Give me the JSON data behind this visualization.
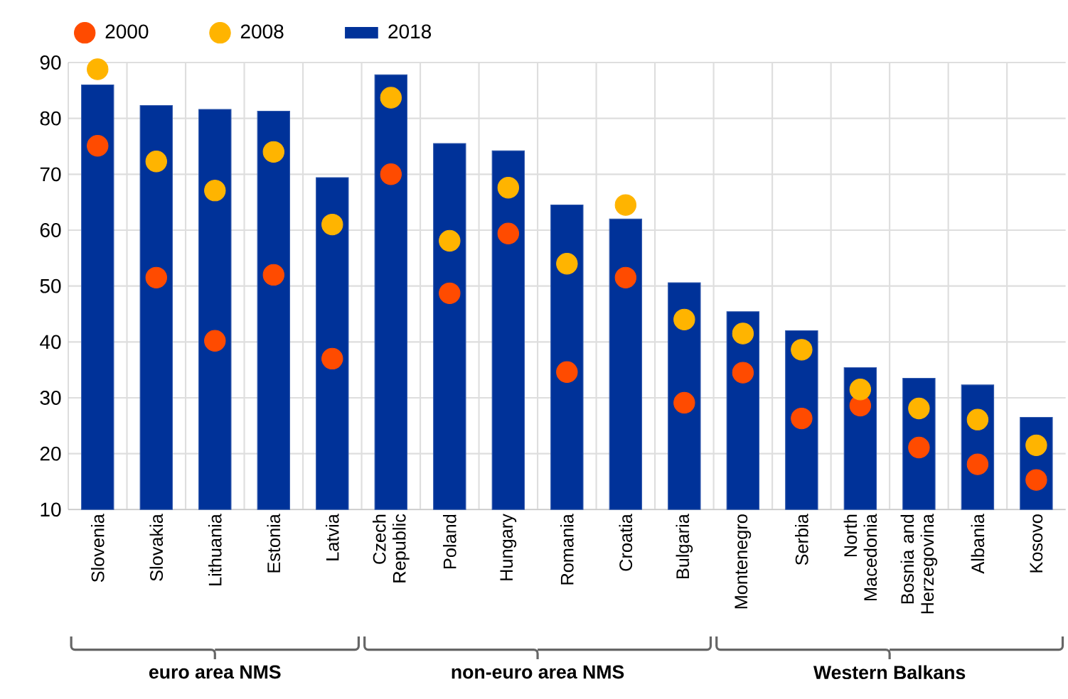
{
  "chart_data": {
    "type": "bar",
    "categories": [
      "Slovenia",
      "Slovakia",
      "Lithuania",
      "Estonia",
      "Latvia",
      "Czech Republic",
      "Poland",
      "Hungary",
      "Romania",
      "Croatia",
      "Bulgaria",
      "Montenegro",
      "Serbia",
      "North Macedonia",
      "Bosnia and Herzegovina",
      "Albania",
      "Kosovo"
    ],
    "series": [
      {
        "name": "2000",
        "type": "scatter",
        "color": "#ff4b00",
        "values": [
          75.1,
          51.5,
          40.2,
          52,
          37,
          70,
          48.7,
          59.4,
          34.6,
          51.5,
          29.1,
          34.5,
          26.3,
          28.6,
          21.1,
          18.1,
          15.3
        ]
      },
      {
        "name": "2008",
        "type": "scatter",
        "color": "#ffb400",
        "values": [
          88.8,
          72.3,
          67.1,
          74,
          61,
          83.7,
          58.1,
          67.6,
          54,
          64.5,
          44,
          41.5,
          38.6,
          31.5,
          28.1,
          26.1,
          21.5
        ]
      },
      {
        "name": "2018",
        "type": "bar",
        "color": "#003299",
        "values": [
          86,
          82.3,
          81.6,
          81.3,
          69.4,
          87.8,
          75.5,
          74.2,
          64.5,
          62,
          50.6,
          45.4,
          42,
          35.4,
          33.5,
          32.3,
          26.5
        ]
      }
    ],
    "ylim": [
      10,
      90
    ],
    "yticks": [
      10,
      20,
      30,
      40,
      50,
      60,
      70,
      80,
      90
    ],
    "grid": true,
    "legend": "top",
    "marker": "circle",
    "annotations": [
      "euro area NMS",
      "non-euro area NMS",
      "Western Balkans"
    ]
  }
}
